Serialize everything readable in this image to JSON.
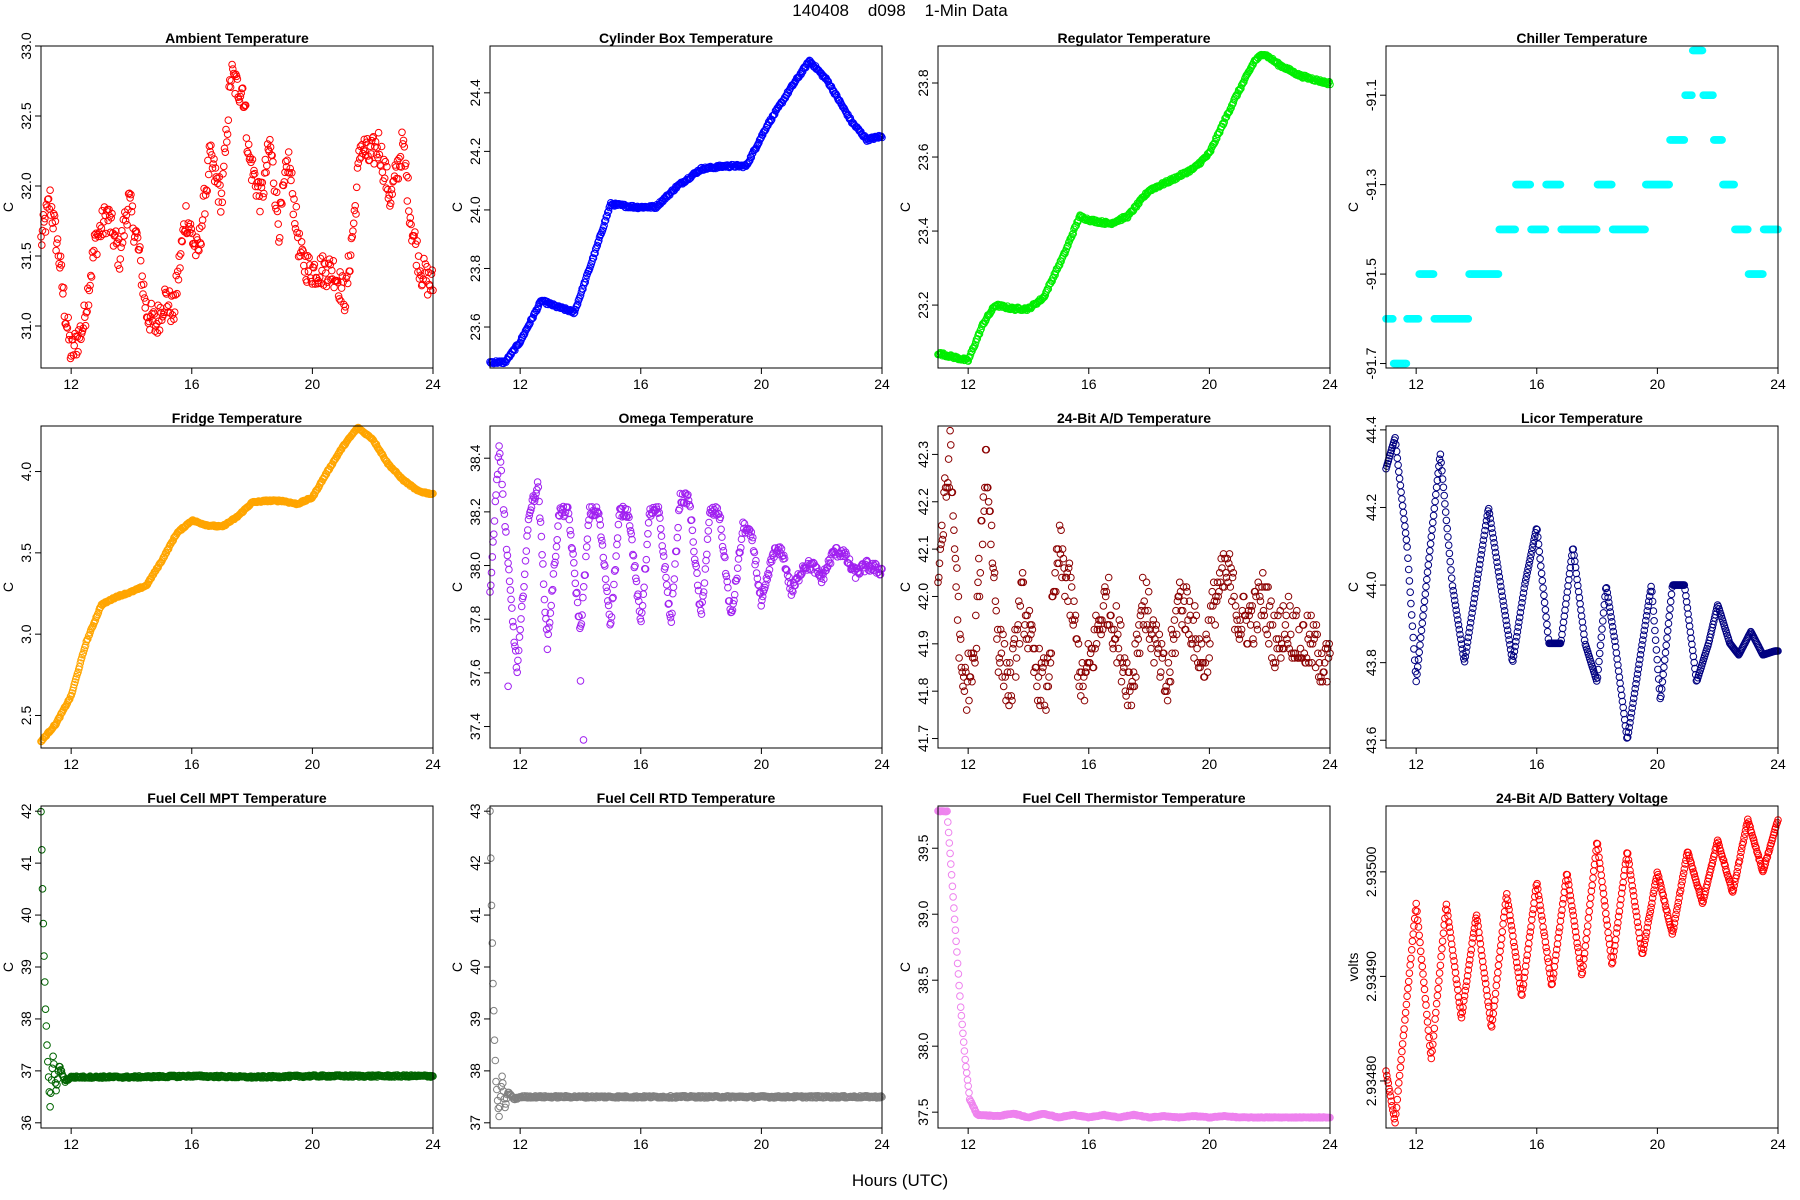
{
  "page": {
    "title": "140408    d098    1-Min Data",
    "xlabel": "Hours (UTC)"
  },
  "chart_data": [
    {
      "type": "scatter",
      "title": "Ambient Temperature",
      "ylabel": "C",
      "color": "#ff0000",
      "xlim": [
        11,
        24
      ],
      "ylim": [
        30.7,
        33.0
      ],
      "xticks": [
        12,
        16,
        20,
        24
      ],
      "yticks": [
        31.0,
        31.5,
        32.0,
        32.5,
        33.0
      ],
      "ytick_labels": [
        "31.0",
        "31.5",
        "32.0",
        "32.5",
        "33.0"
      ],
      "x": [
        11.0,
        11.3,
        11.6,
        11.8,
        12.0,
        12.4,
        12.8,
        13.2,
        13.6,
        13.9,
        14.2,
        14.5,
        14.8,
        15.1,
        15.4,
        15.8,
        16.2,
        16.6,
        17.0,
        17.3,
        17.5,
        17.7,
        17.9,
        18.3,
        18.6,
        18.9,
        19.2,
        19.6,
        19.9,
        20.3,
        20.7,
        21.1,
        21.4,
        21.6,
        21.9,
        22.2,
        22.6,
        23.0,
        23.3,
        23.6,
        23.9
      ],
      "y": [
        31.6,
        31.9,
        31.5,
        31.1,
        30.8,
        31.0,
        31.6,
        31.8,
        31.5,
        31.9,
        31.6,
        31.1,
        31.0,
        31.2,
        31.1,
        31.8,
        31.5,
        32.2,
        31.9,
        32.8,
        32.7,
        32.7,
        32.2,
        31.9,
        32.3,
        31.7,
        32.2,
        31.5,
        31.4,
        31.4,
        31.4,
        31.2,
        31.8,
        32.3,
        32.2,
        32.3,
        31.9,
        32.3,
        31.7,
        31.4,
        31.3
      ],
      "noise": 0.12
    },
    {
      "type": "scatter",
      "title": "Cylinder Box Temperature",
      "ylabel": "C",
      "color": "#0000ff",
      "xlim": [
        11,
        24
      ],
      "ylim": [
        23.46,
        24.56
      ],
      "xticks": [
        12,
        16,
        20,
        24
      ],
      "yticks": [
        23.6,
        23.8,
        24.0,
        24.2,
        24.4
      ],
      "ytick_labels": [
        "23.6",
        "23.8",
        "24.0",
        "24.2",
        "24.4"
      ],
      "x": [
        11.0,
        11.5,
        12.0,
        12.7,
        13.2,
        13.8,
        14.5,
        15.0,
        15.8,
        16.5,
        17.2,
        18.0,
        18.8,
        19.5,
        20.2,
        21.0,
        21.6,
        22.2,
        23.0,
        23.5,
        23.9
      ],
      "y": [
        23.48,
        23.48,
        23.55,
        23.69,
        23.67,
        23.65,
        23.86,
        24.02,
        24.01,
        24.01,
        24.08,
        24.14,
        24.15,
        24.15,
        24.29,
        24.42,
        24.51,
        24.44,
        24.3,
        24.24,
        24.25
      ],
      "noise": 0.005
    },
    {
      "type": "scatter",
      "title": "Regulator Temperature",
      "ylabel": "C",
      "color": "#00ee00",
      "xlim": [
        11,
        24
      ],
      "ylim": [
        23.03,
        23.9
      ],
      "xticks": [
        12,
        16,
        20,
        24
      ],
      "yticks": [
        23.2,
        23.4,
        23.6,
        23.8
      ],
      "ytick_labels": [
        "23.2",
        "23.4",
        "23.6",
        "23.8"
      ],
      "x": [
        11.0,
        11.5,
        12.0,
        12.5,
        12.9,
        13.5,
        14.0,
        14.5,
        15.2,
        15.7,
        16.0,
        16.7,
        17.3,
        18.0,
        18.8,
        19.5,
        20.0,
        20.8,
        21.5,
        21.8,
        22.3,
        23.0,
        23.9
      ],
      "y": [
        23.07,
        23.06,
        23.05,
        23.15,
        23.2,
        23.19,
        23.19,
        23.22,
        23.34,
        23.44,
        23.43,
        23.42,
        23.44,
        23.51,
        23.54,
        23.57,
        23.61,
        23.75,
        23.86,
        23.88,
        23.85,
        23.82,
        23.8
      ],
      "noise": 0.004
    },
    {
      "type": "scatter",
      "title": "Chiller Temperature",
      "ylabel": "C",
      "color": "#00ffff",
      "xlim": [
        11,
        24
      ],
      "ylim": [
        -91.71,
        -90.99
      ],
      "xticks": [
        12,
        16,
        20,
        24
      ],
      "yticks": [
        -91.7,
        -91.5,
        -91.3,
        -91.1
      ],
      "ytick_labels": [
        "-91.7",
        "-91.5",
        "-91.3",
        "-91.1"
      ],
      "x": [
        11.0,
        11.5,
        11.9,
        12.3,
        12.9,
        13.5,
        14.0,
        14.5,
        15.0,
        15.6,
        16.0,
        16.6,
        17.0,
        17.7,
        18.3,
        18.7,
        19.2,
        20.0,
        20.8,
        21.0,
        21.3,
        21.7,
        22.3,
        22.8,
        23.2,
        23.8
      ],
      "y": [
        -91.6,
        -91.7,
        -91.6,
        -91.5,
        -91.6,
        -91.6,
        -91.5,
        -91.5,
        -91.4,
        -91.3,
        -91.4,
        -91.3,
        -91.4,
        -91.4,
        -91.3,
        -91.4,
        -91.4,
        -91.3,
        -91.2,
        -91.1,
        -91.0,
        -91.1,
        -91.3,
        -91.4,
        -91.5,
        -91.4
      ],
      "noise": 0.0,
      "quantize": 0.1
    },
    {
      "type": "scatter",
      "title": "Fridge Temperature",
      "ylabel": "C",
      "color": "#ffa500",
      "xlim": [
        11,
        24
      ],
      "ylim": [
        2.3,
        4.28
      ],
      "xticks": [
        12,
        16,
        20,
        24
      ],
      "yticks": [
        2.5,
        3.0,
        3.5,
        4.0
      ],
      "ytick_labels": [
        "2.5",
        "3.0",
        "3.5",
        "4.0"
      ],
      "x": [
        11.0,
        11.5,
        12.0,
        12.5,
        13.0,
        13.5,
        14.0,
        14.5,
        15.0,
        15.5,
        16.0,
        16.5,
        17.0,
        17.5,
        18.0,
        18.5,
        19.0,
        19.5,
        20.0,
        20.5,
        21.0,
        21.5,
        22.0,
        22.5,
        23.0,
        23.5,
        24.0
      ],
      "y": [
        2.34,
        2.45,
        2.62,
        2.95,
        3.18,
        3.23,
        3.26,
        3.3,
        3.45,
        3.62,
        3.7,
        3.67,
        3.66,
        3.72,
        3.81,
        3.82,
        3.82,
        3.8,
        3.84,
        4.0,
        4.15,
        4.27,
        4.2,
        4.05,
        3.95,
        3.88,
        3.86
      ],
      "noise": 0.005
    },
    {
      "type": "scatter",
      "title": "Omega Temperature",
      "ylabel": "C",
      "color": "#a020f0",
      "xlim": [
        11,
        24
      ],
      "ylim": [
        37.32,
        38.52
      ],
      "xticks": [
        12,
        16,
        20,
        24
      ],
      "yticks": [
        37.4,
        37.6,
        37.8,
        38.0,
        38.2,
        38.4
      ],
      "ytick_labels": [
        "37.4",
        "37.6",
        "37.8",
        "38.0",
        "38.2",
        "38.4"
      ],
      "x": [
        11.0,
        11.3,
        11.6,
        11.9,
        12.3,
        12.6,
        12.9,
        13.3,
        13.6,
        14.0,
        14.3,
        14.6,
        15.0,
        15.3,
        15.6,
        16.0,
        16.3,
        16.6,
        17.0,
        17.3,
        17.6,
        18.0,
        18.3,
        18.6,
        19.0,
        19.4,
        19.7,
        20.0,
        20.4,
        20.7,
        21.0,
        21.4,
        21.7,
        22.0,
        22.4,
        22.7,
        23.1,
        23.5,
        24.0
      ],
      "y": [
        37.9,
        38.45,
        38.0,
        37.6,
        38.2,
        38.3,
        37.7,
        38.2,
        38.2,
        37.75,
        38.2,
        38.2,
        37.78,
        38.2,
        38.2,
        37.78,
        38.2,
        38.2,
        37.78,
        38.25,
        38.25,
        37.8,
        38.2,
        38.2,
        37.8,
        38.15,
        38.1,
        37.85,
        38.05,
        38.05,
        37.9,
        38.0,
        38.0,
        37.95,
        38.05,
        38.05,
        37.97,
        38.0,
        37.98
      ],
      "noise": 0.02,
      "extra": [
        [
          14.0,
          37.57
        ],
        [
          14.1,
          37.35
        ],
        [
          11.6,
          37.55
        ]
      ]
    },
    {
      "type": "scatter",
      "title": "24-Bit A/D Temperature",
      "ylabel": "C",
      "color": "#8b0000",
      "xlim": [
        11,
        24
      ],
      "ylim": [
        41.68,
        42.36
      ],
      "xticks": [
        12,
        16,
        20,
        24
      ],
      "yticks": [
        41.7,
        41.8,
        41.9,
        42.0,
        42.1,
        42.2,
        42.3
      ],
      "ytick_labels": [
        "41.7",
        "41.8",
        "41.9",
        "42.0",
        "42.1",
        "42.2",
        "42.3"
      ],
      "x": [
        11.0,
        11.4,
        11.8,
        12.2,
        12.6,
        13.0,
        13.4,
        13.8,
        14.2,
        14.6,
        15.0,
        15.4,
        15.8,
        16.2,
        16.6,
        17.0,
        17.4,
        17.8,
        18.2,
        18.6,
        19.0,
        19.4,
        19.8,
        20.2,
        20.6,
        21.0,
        21.4,
        21.8,
        22.2,
        22.6,
        23.0,
        23.4,
        23.9
      ],
      "y": [
        42.05,
        42.3,
        41.8,
        41.85,
        42.3,
        41.9,
        41.8,
        42.0,
        41.85,
        41.8,
        42.1,
        42.0,
        41.8,
        41.9,
        42.0,
        41.9,
        41.8,
        42.0,
        41.9,
        41.8,
        42.0,
        41.95,
        41.85,
        42.0,
        42.05,
        41.95,
        41.95,
        42.0,
        41.9,
        41.95,
        41.9,
        41.9,
        41.85
      ],
      "noise": 0.06,
      "quantize": 0.01
    },
    {
      "type": "scatter",
      "title": "Licor Temperature",
      "ylabel": "C",
      "color": "#000080",
      "xlim": [
        11,
        24
      ],
      "ylim": [
        43.58,
        44.41
      ],
      "xticks": [
        12,
        16,
        20,
        24
      ],
      "yticks": [
        43.6,
        43.8,
        44.0,
        44.2,
        44.4
      ],
      "ytick_labels": [
        "43.6",
        "43.8",
        "44.0",
        "44.2",
        "44.4"
      ],
      "x": [
        11.0,
        11.3,
        11.7,
        12.0,
        12.4,
        12.8,
        13.2,
        13.6,
        14.0,
        14.4,
        14.8,
        15.2,
        15.6,
        16.0,
        16.4,
        16.8,
        17.2,
        17.6,
        18.0,
        18.3,
        18.6,
        19.0,
        19.4,
        19.8,
        20.1,
        20.5,
        20.9,
        21.3,
        21.7,
        22.0,
        22.4,
        22.7,
        23.1,
        23.5,
        23.9
      ],
      "y": [
        44.3,
        44.38,
        44.1,
        43.75,
        44.05,
        44.34,
        44.0,
        43.8,
        44.0,
        44.2,
        44.0,
        43.8,
        44.0,
        44.15,
        43.85,
        43.85,
        44.1,
        43.85,
        43.75,
        44.0,
        43.85,
        43.6,
        43.8,
        44.0,
        43.7,
        44.0,
        44.0,
        43.75,
        43.85,
        43.95,
        43.85,
        43.82,
        43.88,
        43.82,
        43.83
      ],
      "noise": 0.0
    },
    {
      "type": "scatter",
      "title": "Fuel Cell MPT Temperature",
      "ylabel": "C",
      "color": "#006400",
      "xlim": [
        11,
        24
      ],
      "ylim": [
        35.9,
        42.1
      ],
      "xticks": [
        12,
        16,
        20,
        24
      ],
      "yticks": [
        36,
        37,
        38,
        39,
        40,
        41,
        42
      ],
      "ytick_labels": [
        "36",
        "37",
        "38",
        "39",
        "40",
        "41",
        "42"
      ],
      "x": [
        11.0,
        11.05,
        11.1,
        11.15,
        11.2,
        11.3,
        11.4,
        11.5,
        11.6,
        11.8,
        12.0,
        14.0,
        16.0,
        18.0,
        20.0,
        22.0,
        24.0
      ],
      "y": [
        42.0,
        40.5,
        39.2,
        38.2,
        37.5,
        36.3,
        37.3,
        36.6,
        37.1,
        36.8,
        36.88,
        36.88,
        36.9,
        36.88,
        36.9,
        36.9,
        36.9
      ],
      "noise": 0.02
    },
    {
      "type": "scatter",
      "title": "Fuel Cell RTD Temperature",
      "ylabel": "C",
      "color": "#808080",
      "xlim": [
        11,
        24
      ],
      "ylim": [
        36.9,
        43.1
      ],
      "xticks": [
        12,
        16,
        20,
        24
      ],
      "yticks": [
        37,
        38,
        39,
        40,
        41,
        42,
        43
      ],
      "ytick_labels": [
        "37",
        "38",
        "39",
        "40",
        "41",
        "42",
        "43"
      ],
      "x": [
        11.0,
        11.05,
        11.1,
        11.15,
        11.2,
        11.3,
        11.4,
        11.5,
        11.6,
        11.8,
        12.0,
        14.0,
        16.0,
        18.0,
        20.0,
        22.0,
        24.0
      ],
      "y": [
        43.0,
        41.2,
        39.7,
        38.6,
        37.8,
        37.1,
        37.9,
        37.3,
        37.6,
        37.45,
        37.5,
        37.5,
        37.5,
        37.5,
        37.5,
        37.5,
        37.5
      ],
      "noise": 0.02
    },
    {
      "type": "scatter",
      "title": "Fuel Cell Thermistor Temperature",
      "ylabel": "C",
      "color": "#ee82ee",
      "xlim": [
        11,
        24
      ],
      "ylim": [
        37.38,
        39.82
      ],
      "xticks": [
        12,
        16,
        20,
        24
      ],
      "yticks": [
        37.5,
        38.0,
        38.5,
        39.0,
        39.5
      ],
      "ytick_labels": [
        "37.5",
        "38.0",
        "38.5",
        "39.0",
        "39.5"
      ],
      "x": [
        11.0,
        11.3,
        11.45,
        11.6,
        11.75,
        11.9,
        12.05,
        12.3,
        13.0,
        13.5,
        14.0,
        14.5,
        15.0,
        15.5,
        16.0,
        16.5,
        17.0,
        17.5,
        18.0,
        18.5,
        19.0,
        19.5,
        20.0,
        20.5,
        21.0,
        22.0,
        23.0,
        24.0
      ],
      "y": [
        39.78,
        39.78,
        39.3,
        38.8,
        38.3,
        37.9,
        37.6,
        37.48,
        37.47,
        37.49,
        37.46,
        37.49,
        37.46,
        37.48,
        37.46,
        37.48,
        37.46,
        37.48,
        37.46,
        37.47,
        37.46,
        37.47,
        37.46,
        37.47,
        37.46,
        37.46,
        37.46,
        37.46
      ],
      "noise": 0.003
    },
    {
      "type": "scatter",
      "title": "24-Bit A/D Battery Voltage",
      "ylabel": "volts",
      "color": "#ff0000",
      "xlim": [
        11,
        24
      ],
      "ylim": [
        2.934755,
        2.935063
      ],
      "xticks": [
        12,
        16,
        20,
        24
      ],
      "yticks": [
        2.9348,
        2.9349,
        2.935
      ],
      "ytick_labels": [
        "2.93480",
        "2.93490",
        "2.93500"
      ],
      "x": [
        11.0,
        11.3,
        12.0,
        12.5,
        13.0,
        13.5,
        14.0,
        14.5,
        15.0,
        15.5,
        16.0,
        16.5,
        17.0,
        17.5,
        18.0,
        18.5,
        19.0,
        19.5,
        20.0,
        20.5,
        21.0,
        21.5,
        22.0,
        22.5,
        23.0,
        23.5,
        24.0
      ],
      "y": [
        2.93481,
        2.93476,
        2.93497,
        2.93482,
        2.93497,
        2.93486,
        2.93496,
        2.93485,
        2.93498,
        2.93488,
        2.93499,
        2.93489,
        2.935,
        2.9349,
        2.93503,
        2.93491,
        2.93502,
        2.93492,
        2.935,
        2.93494,
        2.93502,
        2.93497,
        2.93503,
        2.93498,
        2.93505,
        2.935,
        2.93505
      ],
      "noise": 8e-07
    }
  ]
}
